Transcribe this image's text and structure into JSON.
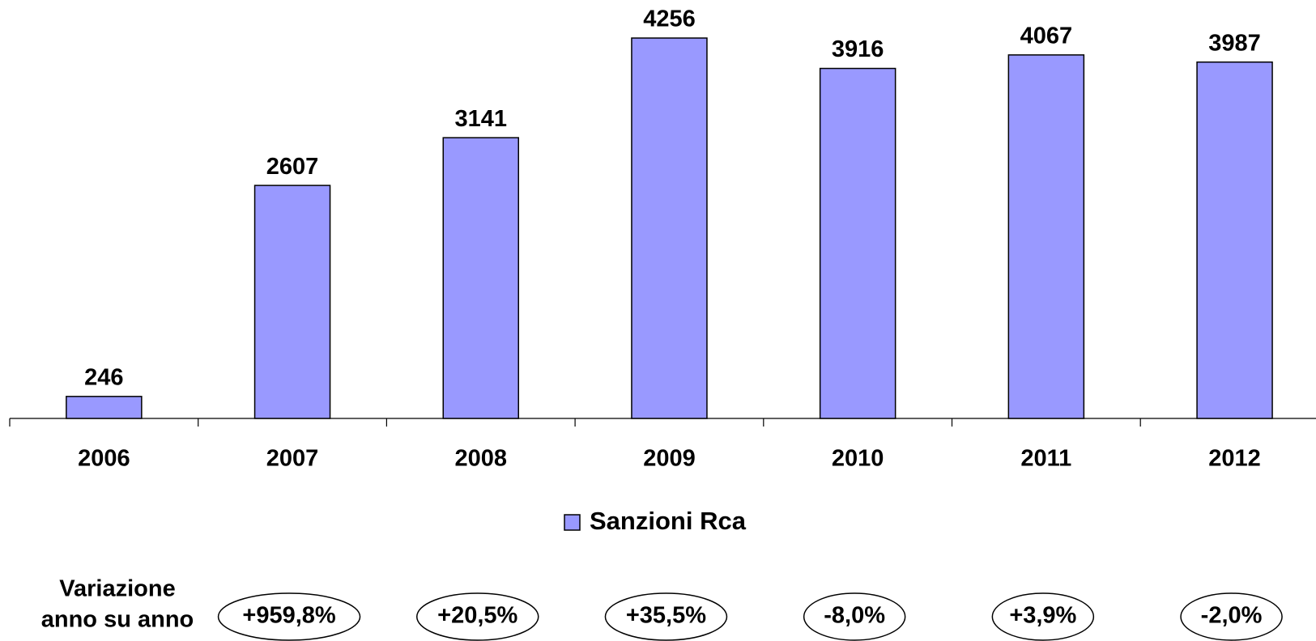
{
  "chart_data": {
    "type": "bar",
    "categories": [
      "2006",
      "2007",
      "2008",
      "2009",
      "2010",
      "2011",
      "2012"
    ],
    "series": [
      {
        "name": "Sanzioni Rca",
        "color": "#9999ff",
        "values": [
          246,
          2607,
          3141,
          4256,
          3916,
          4067,
          3987
        ]
      }
    ],
    "annotations": {
      "title": [
        "Variazione",
        "anno su anno"
      ],
      "labels": [
        "+959,8%",
        "+20,5%",
        "+35,5%",
        "-8,0%",
        "+3,9%",
        "-2,0%"
      ]
    }
  }
}
